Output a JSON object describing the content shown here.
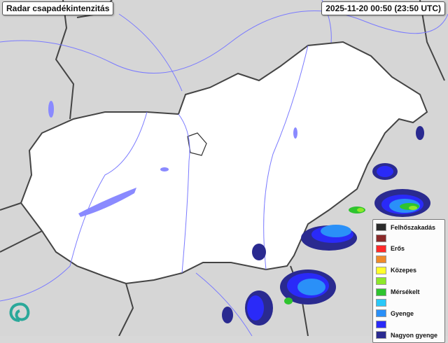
{
  "header": {
    "title": "Radar csapadékintenzitás",
    "timestamp": "2025-11-20 00:50 (23:50 UTC)"
  },
  "legend": {
    "items": [
      {
        "label": "Felhőszakadás",
        "color": "#2b2b2b"
      },
      {
        "label": "",
        "color": "#8b2a2a"
      },
      {
        "label": "Erős",
        "color": "#ff2a2a"
      },
      {
        "label": "",
        "color": "#f08a2a"
      },
      {
        "label": "Közepes",
        "color": "#ffff2a"
      },
      {
        "label": "",
        "color": "#8ee82a"
      },
      {
        "label": "Mérsékelt",
        "color": "#2ec42e"
      },
      {
        "label": "",
        "color": "#2ac8f8"
      },
      {
        "label": "Gyenge",
        "color": "#2a90f8"
      },
      {
        "label": "",
        "color": "#2a2af8"
      },
      {
        "label": "Nagyon gyenge",
        "color": "#2a2a90"
      }
    ]
  },
  "colors": {
    "country_fill": "#ffffff",
    "surroundings": "#d8d8d8",
    "rivers": "#7a7aff",
    "border": "#444444"
  }
}
